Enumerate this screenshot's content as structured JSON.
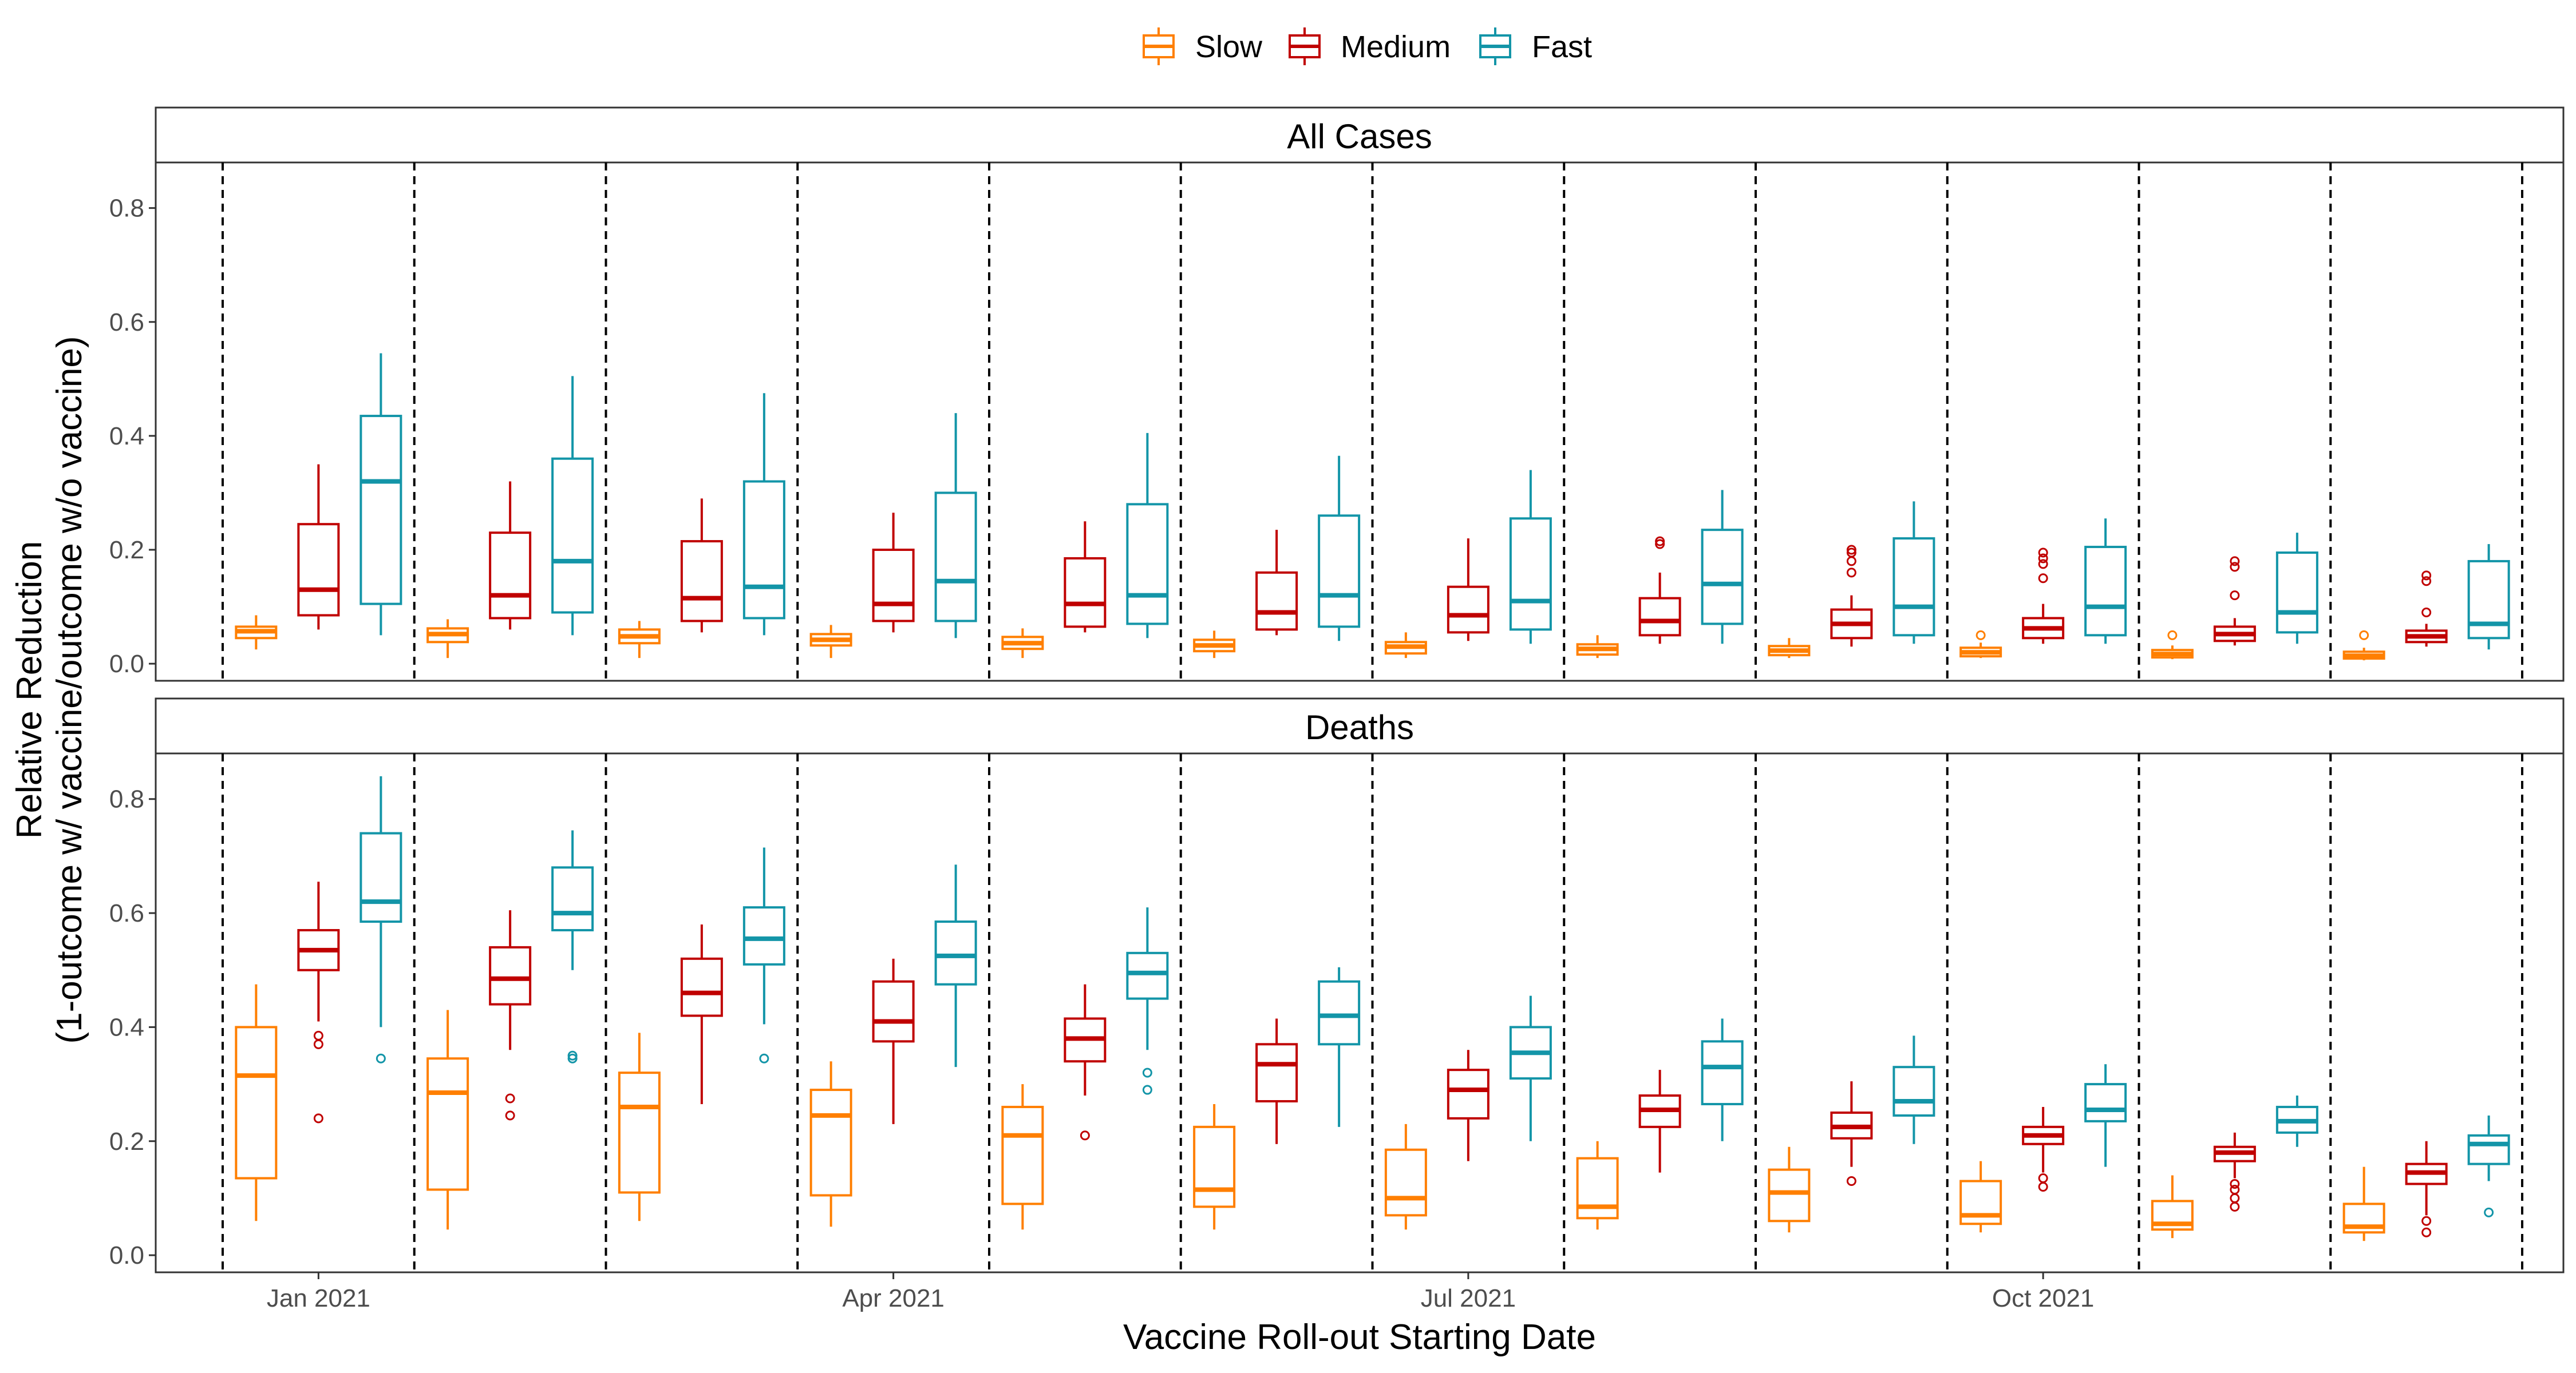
{
  "chart_data": {
    "type": "boxplot",
    "xlabel": "Vaccine Roll-out Starting Date",
    "ylabel": [
      "Relative Reduction",
      "(1-outcome w/ vaccine/outcome w/o vaccine)"
    ],
    "ylim": [
      -0.03,
      0.88
    ],
    "y_ticks": [
      "0.0",
      "0.2",
      "0.4",
      "0.6",
      "0.8"
    ],
    "x_ticks": [
      "Jan 2021",
      "Apr 2021",
      "Jul 2021",
      "Oct 2021"
    ],
    "x_tick_groups": [
      0,
      3,
      6,
      9
    ],
    "group_count": 12,
    "legend": {
      "position": "top",
      "entries": [
        "Slow",
        "Medium",
        "Fast"
      ]
    },
    "series_colors": {
      "Slow": "#FF7F00",
      "Medium": "#C00000",
      "Fast": "#1395A8"
    },
    "grid": false,
    "panels": [
      {
        "label": "All Cases",
        "series": [
          {
            "name": "Slow",
            "boxes": [
              {
                "whislo": 0.025,
                "q1": 0.045,
                "med": 0.057,
                "q3": 0.065,
                "whishi": 0.085,
                "fliers": []
              },
              {
                "whislo": 0.01,
                "q1": 0.038,
                "med": 0.052,
                "q3": 0.062,
                "whishi": 0.078,
                "fliers": []
              },
              {
                "whislo": 0.01,
                "q1": 0.036,
                "med": 0.048,
                "q3": 0.06,
                "whishi": 0.075,
                "fliers": []
              },
              {
                "whislo": 0.01,
                "q1": 0.032,
                "med": 0.042,
                "q3": 0.052,
                "whishi": 0.068,
                "fliers": []
              },
              {
                "whislo": 0.01,
                "q1": 0.026,
                "med": 0.036,
                "q3": 0.047,
                "whishi": 0.062,
                "fliers": []
              },
              {
                "whislo": 0.01,
                "q1": 0.022,
                "med": 0.032,
                "q3": 0.042,
                "whishi": 0.058,
                "fliers": []
              },
              {
                "whislo": 0.01,
                "q1": 0.018,
                "med": 0.03,
                "q3": 0.038,
                "whishi": 0.055,
                "fliers": []
              },
              {
                "whislo": 0.01,
                "q1": 0.016,
                "med": 0.026,
                "q3": 0.034,
                "whishi": 0.05,
                "fliers": []
              },
              {
                "whislo": 0.01,
                "q1": 0.015,
                "med": 0.023,
                "q3": 0.031,
                "whishi": 0.045,
                "fliers": []
              },
              {
                "whislo": 0.01,
                "q1": 0.013,
                "med": 0.02,
                "q3": 0.028,
                "whishi": 0.037,
                "fliers": [
                  0.05
                ]
              },
              {
                "whislo": 0.008,
                "q1": 0.011,
                "med": 0.017,
                "q3": 0.024,
                "whishi": 0.032,
                "fliers": [
                  0.05
                ]
              },
              {
                "whislo": 0.006,
                "q1": 0.009,
                "med": 0.014,
                "q3": 0.021,
                "whishi": 0.028,
                "fliers": [
                  0.05
                ]
              }
            ]
          },
          {
            "name": "Medium",
            "boxes": [
              {
                "whislo": 0.06,
                "q1": 0.085,
                "med": 0.13,
                "q3": 0.245,
                "whishi": 0.35,
                "fliers": []
              },
              {
                "whislo": 0.06,
                "q1": 0.08,
                "med": 0.12,
                "q3": 0.23,
                "whishi": 0.32,
                "fliers": []
              },
              {
                "whislo": 0.055,
                "q1": 0.075,
                "med": 0.115,
                "q3": 0.215,
                "whishi": 0.29,
                "fliers": []
              },
              {
                "whislo": 0.055,
                "q1": 0.075,
                "med": 0.105,
                "q3": 0.2,
                "whishi": 0.265,
                "fliers": []
              },
              {
                "whislo": 0.055,
                "q1": 0.065,
                "med": 0.105,
                "q3": 0.185,
                "whishi": 0.25,
                "fliers": []
              },
              {
                "whislo": 0.05,
                "q1": 0.06,
                "med": 0.09,
                "q3": 0.16,
                "whishi": 0.235,
                "fliers": []
              },
              {
                "whislo": 0.04,
                "q1": 0.055,
                "med": 0.085,
                "q3": 0.135,
                "whishi": 0.22,
                "fliers": []
              },
              {
                "whislo": 0.035,
                "q1": 0.05,
                "med": 0.075,
                "q3": 0.115,
                "whishi": 0.16,
                "fliers": [
                  0.21,
                  0.215
                ]
              },
              {
                "whislo": 0.03,
                "q1": 0.045,
                "med": 0.07,
                "q3": 0.095,
                "whishi": 0.12,
                "fliers": [
                  0.16,
                  0.18,
                  0.195,
                  0.2
                ]
              },
              {
                "whislo": 0.035,
                "q1": 0.045,
                "med": 0.062,
                "q3": 0.08,
                "whishi": 0.105,
                "fliers": [
                  0.15,
                  0.175,
                  0.185,
                  0.195
                ]
              },
              {
                "whislo": 0.032,
                "q1": 0.04,
                "med": 0.052,
                "q3": 0.065,
                "whishi": 0.08,
                "fliers": [
                  0.12,
                  0.17,
                  0.18
                ]
              },
              {
                "whislo": 0.03,
                "q1": 0.038,
                "med": 0.048,
                "q3": 0.058,
                "whishi": 0.07,
                "fliers": [
                  0.09,
                  0.145,
                  0.155
                ]
              }
            ]
          },
          {
            "name": "Fast",
            "boxes": [
              {
                "whislo": 0.05,
                "q1": 0.105,
                "med": 0.32,
                "q3": 0.435,
                "whishi": 0.545,
                "fliers": []
              },
              {
                "whislo": 0.05,
                "q1": 0.09,
                "med": 0.18,
                "q3": 0.36,
                "whishi": 0.505,
                "fliers": []
              },
              {
                "whislo": 0.05,
                "q1": 0.08,
                "med": 0.135,
                "q3": 0.32,
                "whishi": 0.475,
                "fliers": []
              },
              {
                "whislo": 0.045,
                "q1": 0.075,
                "med": 0.145,
                "q3": 0.3,
                "whishi": 0.44,
                "fliers": []
              },
              {
                "whislo": 0.045,
                "q1": 0.07,
                "med": 0.12,
                "q3": 0.28,
                "whishi": 0.405,
                "fliers": []
              },
              {
                "whislo": 0.04,
                "q1": 0.065,
                "med": 0.12,
                "q3": 0.26,
                "whishi": 0.365,
                "fliers": []
              },
              {
                "whislo": 0.035,
                "q1": 0.06,
                "med": 0.11,
                "q3": 0.255,
                "whishi": 0.34,
                "fliers": []
              },
              {
                "whislo": 0.035,
                "q1": 0.07,
                "med": 0.14,
                "q3": 0.235,
                "whishi": 0.305,
                "fliers": []
              },
              {
                "whislo": 0.035,
                "q1": 0.05,
                "med": 0.1,
                "q3": 0.22,
                "whishi": 0.285,
                "fliers": []
              },
              {
                "whislo": 0.035,
                "q1": 0.05,
                "med": 0.1,
                "q3": 0.205,
                "whishi": 0.255,
                "fliers": []
              },
              {
                "whislo": 0.035,
                "q1": 0.055,
                "med": 0.09,
                "q3": 0.195,
                "whishi": 0.23,
                "fliers": []
              },
              {
                "whislo": 0.025,
                "q1": 0.045,
                "med": 0.07,
                "q3": 0.18,
                "whishi": 0.21,
                "fliers": []
              }
            ]
          }
        ]
      },
      {
        "label": "Deaths",
        "series": [
          {
            "name": "Slow",
            "boxes": [
              {
                "whislo": 0.06,
                "q1": 0.135,
                "med": 0.315,
                "q3": 0.4,
                "whishi": 0.475,
                "fliers": []
              },
              {
                "whislo": 0.045,
                "q1": 0.115,
                "med": 0.285,
                "q3": 0.345,
                "whishi": 0.43,
                "fliers": []
              },
              {
                "whislo": 0.06,
                "q1": 0.11,
                "med": 0.26,
                "q3": 0.32,
                "whishi": 0.39,
                "fliers": []
              },
              {
                "whislo": 0.05,
                "q1": 0.105,
                "med": 0.245,
                "q3": 0.29,
                "whishi": 0.34,
                "fliers": []
              },
              {
                "whislo": 0.045,
                "q1": 0.09,
                "med": 0.21,
                "q3": 0.26,
                "whishi": 0.3,
                "fliers": []
              },
              {
                "whislo": 0.045,
                "q1": 0.085,
                "med": 0.115,
                "q3": 0.225,
                "whishi": 0.265,
                "fliers": []
              },
              {
                "whislo": 0.045,
                "q1": 0.07,
                "med": 0.1,
                "q3": 0.185,
                "whishi": 0.23,
                "fliers": []
              },
              {
                "whislo": 0.045,
                "q1": 0.065,
                "med": 0.085,
                "q3": 0.17,
                "whishi": 0.2,
                "fliers": []
              },
              {
                "whislo": 0.04,
                "q1": 0.06,
                "med": 0.11,
                "q3": 0.15,
                "whishi": 0.19,
                "fliers": []
              },
              {
                "whislo": 0.04,
                "q1": 0.055,
                "med": 0.07,
                "q3": 0.13,
                "whishi": 0.165,
                "fliers": []
              },
              {
                "whislo": 0.03,
                "q1": 0.045,
                "med": 0.055,
                "q3": 0.095,
                "whishi": 0.14,
                "fliers": []
              },
              {
                "whislo": 0.025,
                "q1": 0.04,
                "med": 0.05,
                "q3": 0.09,
                "whishi": 0.155,
                "fliers": []
              }
            ]
          },
          {
            "name": "Medium",
            "boxes": [
              {
                "whislo": 0.41,
                "q1": 0.5,
                "med": 0.535,
                "q3": 0.57,
                "whishi": 0.655,
                "fliers": [
                  0.24,
                  0.37,
                  0.385
                ]
              },
              {
                "whislo": 0.36,
                "q1": 0.44,
                "med": 0.485,
                "q3": 0.54,
                "whishi": 0.605,
                "fliers": [
                  0.245,
                  0.275
                ]
              },
              {
                "whislo": 0.265,
                "q1": 0.42,
                "med": 0.46,
                "q3": 0.52,
                "whishi": 0.58,
                "fliers": []
              },
              {
                "whislo": 0.23,
                "q1": 0.375,
                "med": 0.41,
                "q3": 0.48,
                "whishi": 0.52,
                "fliers": []
              },
              {
                "whislo": 0.28,
                "q1": 0.34,
                "med": 0.38,
                "q3": 0.415,
                "whishi": 0.475,
                "fliers": [
                  0.21
                ]
              },
              {
                "whislo": 0.195,
                "q1": 0.27,
                "med": 0.335,
                "q3": 0.37,
                "whishi": 0.415,
                "fliers": []
              },
              {
                "whislo": 0.165,
                "q1": 0.24,
                "med": 0.29,
                "q3": 0.325,
                "whishi": 0.36,
                "fliers": []
              },
              {
                "whislo": 0.145,
                "q1": 0.225,
                "med": 0.255,
                "q3": 0.28,
                "whishi": 0.325,
                "fliers": []
              },
              {
                "whislo": 0.155,
                "q1": 0.205,
                "med": 0.225,
                "q3": 0.25,
                "whishi": 0.305,
                "fliers": [
                  0.13
                ]
              },
              {
                "whislo": 0.145,
                "q1": 0.195,
                "med": 0.21,
                "q3": 0.225,
                "whishi": 0.26,
                "fliers": [
                  0.12,
                  0.135
                ]
              },
              {
                "whislo": 0.135,
                "q1": 0.165,
                "med": 0.18,
                "q3": 0.19,
                "whishi": 0.215,
                "fliers": [
                  0.085,
                  0.1,
                  0.115,
                  0.125
                ]
              },
              {
                "whislo": 0.07,
                "q1": 0.125,
                "med": 0.145,
                "q3": 0.16,
                "whishi": 0.2,
                "fliers": [
                  0.04,
                  0.06
                ]
              }
            ]
          },
          {
            "name": "Fast",
            "boxes": [
              {
                "whislo": 0.4,
                "q1": 0.585,
                "med": 0.62,
                "q3": 0.74,
                "whishi": 0.84,
                "fliers": [
                  0.345
                ]
              },
              {
                "whislo": 0.5,
                "q1": 0.57,
                "med": 0.6,
                "q3": 0.68,
                "whishi": 0.745,
                "fliers": [
                  0.345,
                  0.35
                ]
              },
              {
                "whislo": 0.405,
                "q1": 0.51,
                "med": 0.555,
                "q3": 0.61,
                "whishi": 0.715,
                "fliers": [
                  0.345
                ]
              },
              {
                "whislo": 0.33,
                "q1": 0.475,
                "med": 0.525,
                "q3": 0.585,
                "whishi": 0.685,
                "fliers": []
              },
              {
                "whislo": 0.36,
                "q1": 0.45,
                "med": 0.495,
                "q3": 0.53,
                "whishi": 0.61,
                "fliers": [
                  0.29,
                  0.32
                ]
              },
              {
                "whislo": 0.225,
                "q1": 0.37,
                "med": 0.42,
                "q3": 0.48,
                "whishi": 0.505,
                "fliers": []
              },
              {
                "whislo": 0.2,
                "q1": 0.31,
                "med": 0.355,
                "q3": 0.4,
                "whishi": 0.455,
                "fliers": []
              },
              {
                "whislo": 0.2,
                "q1": 0.265,
                "med": 0.33,
                "q3": 0.375,
                "whishi": 0.415,
                "fliers": []
              },
              {
                "whislo": 0.195,
                "q1": 0.245,
                "med": 0.27,
                "q3": 0.33,
                "whishi": 0.385,
                "fliers": []
              },
              {
                "whislo": 0.155,
                "q1": 0.235,
                "med": 0.255,
                "q3": 0.3,
                "whishi": 0.335,
                "fliers": []
              },
              {
                "whislo": 0.19,
                "q1": 0.215,
                "med": 0.235,
                "q3": 0.26,
                "whishi": 0.28,
                "fliers": []
              },
              {
                "whislo": 0.13,
                "q1": 0.16,
                "med": 0.195,
                "q3": 0.21,
                "whishi": 0.245,
                "fliers": [
                  0.075
                ]
              }
            ]
          }
        ]
      }
    ]
  }
}
